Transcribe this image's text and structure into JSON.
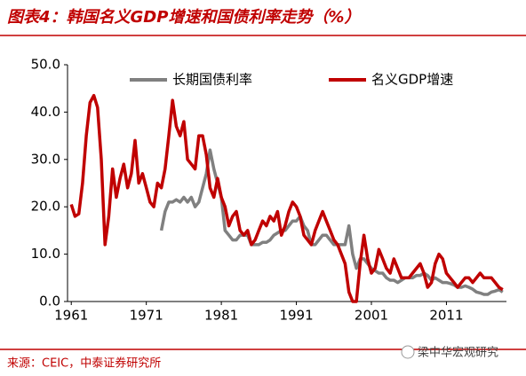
{
  "chart_data": {
    "type": "line",
    "title": "图表4：韩国名义GDP增速和国债利率走势（%）",
    "source": "来源：CEIC，中泰证券研究所",
    "watermark": "梁中华宏观研究",
    "x": [
      1961,
      1961.5,
      1962,
      1962.5,
      1963,
      1963.5,
      1964,
      1964.5,
      1965,
      1965.5,
      1966,
      1966.5,
      1967,
      1967.5,
      1968,
      1968.5,
      1969,
      1969.5,
      1970,
      1970.5,
      1971,
      1971.5,
      1972,
      1972.5,
      1973,
      1973.5,
      1974,
      1974.5,
      1975,
      1975.5,
      1976,
      1976.5,
      1977,
      1977.5,
      1978,
      1978.5,
      1979,
      1979.5,
      1980,
      1980.5,
      1981,
      1981.5,
      1982,
      1982.5,
      1983,
      1983.5,
      1984,
      1984.5,
      1985,
      1985.5,
      1986,
      1986.5,
      1987,
      1987.5,
      1988,
      1988.5,
      1989,
      1989.5,
      1990,
      1990.5,
      1991,
      1991.5,
      1992,
      1992.5,
      1993,
      1993.5,
      1994,
      1994.5,
      1995,
      1995.5,
      1996,
      1996.5,
      1997,
      1997.5,
      1998,
      1998.5,
      1999,
      1999.5,
      2000,
      2000.5,
      2001,
      2001.5,
      2002,
      2002.5,
      2003,
      2003.5,
      2004,
      2004.5,
      2005,
      2005.5,
      2006,
      2006.5,
      2007,
      2007.5,
      2008,
      2008.5,
      2009,
      2009.5,
      2010,
      2010.5,
      2011,
      2011.5,
      2012,
      2012.5,
      2013,
      2013.5,
      2014,
      2014.5,
      2015,
      2015.5,
      2016,
      2016.5,
      2017,
      2017.5,
      2018,
      2018.5
    ],
    "series": [
      {
        "name": "长期国债利率",
        "color": "#808080",
        "values": [
          null,
          null,
          null,
          null,
          null,
          null,
          null,
          null,
          null,
          null,
          null,
          null,
          null,
          null,
          null,
          null,
          null,
          null,
          null,
          null,
          null,
          null,
          null,
          null,
          15,
          19,
          21,
          21,
          21.5,
          21,
          22,
          21,
          22,
          20,
          21,
          24,
          27,
          32,
          28,
          25,
          22,
          15,
          14,
          13,
          13,
          14,
          14,
          14,
          12,
          12,
          12,
          12.5,
          12.5,
          13,
          14,
          14.5,
          15,
          15,
          16,
          17,
          17,
          18,
          16,
          15,
          12,
          12,
          13,
          14,
          14,
          13,
          12,
          12,
          12,
          12,
          16,
          10,
          7,
          9,
          9,
          8,
          7,
          6.5,
          6,
          6,
          5,
          4.5,
          4.5,
          4,
          4.5,
          5,
          5,
          5,
          5.5,
          5.5,
          6,
          5.5,
          4.5,
          5,
          4.5,
          4,
          4,
          3.8,
          3.5,
          3,
          3,
          3.3,
          3,
          2.6,
          2,
          1.8,
          1.5,
          1.5,
          2,
          2.2,
          2.5,
          2
        ]
      },
      {
        "name": "名义GDP增速",
        "color": "#c00000",
        "values": [
          20.5,
          18,
          18.5,
          25,
          35,
          42,
          43.5,
          41,
          30,
          12,
          18,
          28,
          22,
          26,
          29,
          24,
          27,
          34,
          25,
          27,
          24,
          21,
          20,
          25,
          24,
          28,
          35,
          42.5,
          37,
          35,
          38,
          30,
          29,
          28,
          35,
          35,
          31,
          24,
          22,
          26,
          22,
          20,
          16,
          18,
          19,
          15,
          14,
          15,
          12,
          13,
          15,
          17,
          16,
          18,
          17,
          19,
          14,
          16,
          19,
          21,
          20,
          18,
          14,
          13,
          12,
          15,
          17,
          19,
          17,
          15,
          13,
          12,
          10,
          8,
          2,
          0,
          0,
          8,
          14,
          9,
          6,
          7,
          11,
          9,
          7,
          6,
          9,
          7,
          5,
          5,
          5,
          6,
          7,
          8,
          6,
          3,
          4,
          8,
          10,
          9,
          6,
          5,
          4,
          3,
          4,
          5,
          5,
          4,
          5,
          6,
          5,
          5,
          5,
          4,
          3,
          2.5
        ]
      }
    ],
    "xlim": [
      1960.5,
      2019
    ],
    "xticks": [
      1961,
      1971,
      1981,
      1991,
      2001,
      2011
    ],
    "ylim": [
      0,
      50
    ],
    "yticks": [
      {
        "value": 0,
        "label": "0.0"
      },
      {
        "value": 10,
        "label": "10.0"
      },
      {
        "value": 20,
        "label": "20.0"
      },
      {
        "value": 30,
        "label": "30.0"
      },
      {
        "value": 40,
        "label": "40.0"
      },
      {
        "value": 50,
        "label": "50.0"
      }
    ],
    "legend": "top"
  }
}
